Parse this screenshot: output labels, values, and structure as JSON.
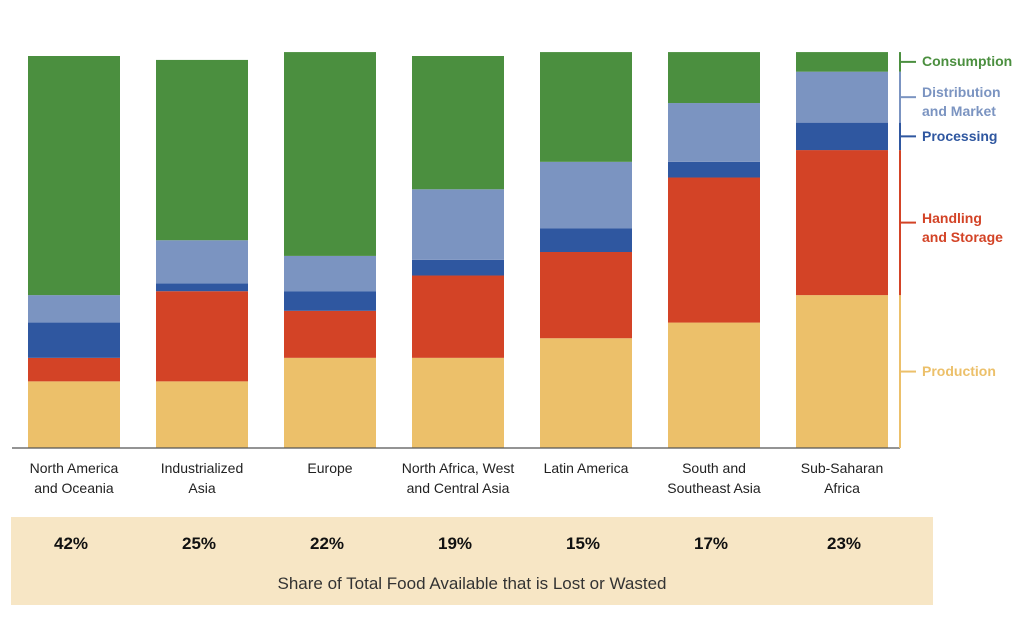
{
  "chart_data": {
    "type": "bar",
    "stacked": true,
    "categories": [
      "North America\nand Oceania",
      "Industrialized\nAsia",
      "Europe",
      "North Africa, West\nand Central Asia",
      "Latin America",
      "South and\nSoutheast Asia",
      "Sub-Saharan\nAfrica"
    ],
    "series": [
      {
        "name": "Production",
        "color": "#ecc06a",
        "values": [
          17,
          17,
          23,
          23,
          28,
          32,
          39
        ]
      },
      {
        "name": "Handling\nand Storage",
        "color": "#d34326",
        "values": [
          6,
          23,
          12,
          21,
          22,
          37,
          37
        ]
      },
      {
        "name": "Processing",
        "color": "#2f57a0",
        "values": [
          9,
          2,
          5,
          4,
          6,
          4,
          7
        ]
      },
      {
        "name": "Distribution\nand Market",
        "color": "#7b94c1",
        "values": [
          7,
          11,
          9,
          18,
          17,
          15,
          13
        ]
      },
      {
        "name": "Consumption",
        "color": "#4b8f3f",
        "values": [
          61,
          46,
          52,
          34,
          28,
          13,
          5
        ]
      }
    ],
    "grid": false,
    "legend_placement": "right",
    "shares": [
      "42%",
      "25%",
      "22%",
      "19%",
      "15%",
      "17%",
      "23%"
    ],
    "share_caption": "Share of Total Food Available that is Lost or Wasted"
  }
}
